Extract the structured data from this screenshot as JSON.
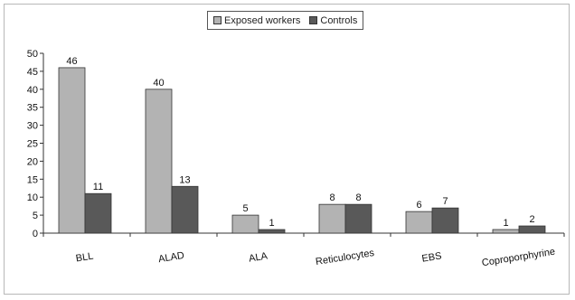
{
  "chart_data": {
    "type": "bar",
    "categories": [
      "BLL",
      "ALAD",
      "ALA",
      "Reticulocytes",
      "EBS",
      "Coproporphyrine"
    ],
    "series": [
      {
        "name": "Exposed workers",
        "values": [
          46,
          40,
          5,
          8,
          6,
          1
        ],
        "color": "#b3b3b3"
      },
      {
        "name": "Controls",
        "values": [
          11,
          13,
          1,
          8,
          7,
          2
        ],
        "color": "#595959"
      }
    ],
    "ylim": [
      0,
      50
    ],
    "yticks": [
      0,
      5,
      10,
      15,
      20,
      25,
      30,
      35,
      40,
      45,
      50
    ],
    "grid": false,
    "legend_position": "top"
  },
  "legend": {
    "exposed_label": "Exposed workers",
    "controls_label": "Controls",
    "exposed_color": "#b3b3b3",
    "controls_color": "#595959"
  }
}
